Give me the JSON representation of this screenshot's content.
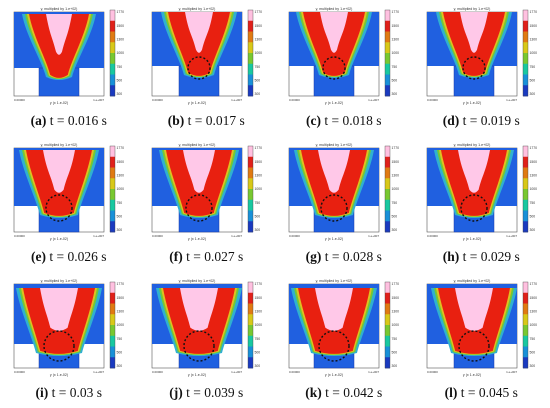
{
  "panels": [
    {
      "label": "(a)",
      "time": "t = 0.016 s",
      "stage": 0
    },
    {
      "label": "(b)",
      "time": "t = 0.017 s",
      "stage": 1
    },
    {
      "label": "(c)",
      "time": "t = 0.018 s",
      "stage": 1
    },
    {
      "label": "(d)",
      "time": "t = 0.019 s",
      "stage": 1
    },
    {
      "label": "(e)",
      "time": "t = 0.026 s",
      "stage": 2
    },
    {
      "label": "(f)",
      "time": "t = 0.027 s",
      "stage": 2
    },
    {
      "label": "(g)",
      "time": "t = 0.028 s",
      "stage": 2
    },
    {
      "label": "(h)",
      "time": "t = 0.029 s",
      "stage": 2
    },
    {
      "label": "(i)",
      "time": "t = 0.03 s",
      "stage": 3
    },
    {
      "label": "(j)",
      "time": "t = 0.039 s",
      "stage": 3
    },
    {
      "label": "(k)",
      "time": "t = 0.042 s",
      "stage": 3
    },
    {
      "label": "(l)",
      "time": "t = 0.045 s",
      "stage": 3
    }
  ],
  "plot_text": {
    "title": "y, multiplied by 1.e+02)",
    "xlabel": "y (x 1.e-02)",
    "x_left": "0.00000",
    "x_right": "1.e+007"
  },
  "colorbar": {
    "ticks": [
      "1770",
      "1500",
      "1300",
      "1000",
      "750",
      "500",
      "300"
    ],
    "colors": [
      "#ffc0e0",
      "#e0201a",
      "#e07a12",
      "#d8c818",
      "#78c830",
      "#18c8a0",
      "#1890d8",
      "#1a3ac0"
    ]
  },
  "field_colors": {
    "background": "#2060e0",
    "outer_layer": "#30b0d0",
    "green_layer": "#70c838",
    "yellow_layer": "#e0c020",
    "hot_region": "#e82010",
    "core": "#ffc8e8",
    "ring": "#111111"
  }
}
